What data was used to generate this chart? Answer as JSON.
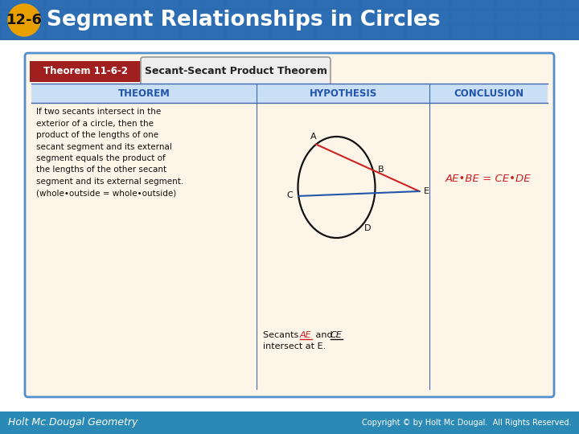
{
  "title": "Segment Relationships in Circles",
  "title_num": "12-6",
  "title_bg": "#2b6cb0",
  "title_badge_bg": "#e8a000",
  "title_badge_text_color": "#111111",
  "title_text_color": "#ffffff",
  "theorem_label_bg": "#a02020",
  "theorem_label_text": "Theorem 11-6-2",
  "theorem_name": "Secant-Secant Product Theorem",
  "card_bg": "#fdf6e8",
  "card_border": "#5590cc",
  "col_header_color": "#2255aa",
  "col_headers": [
    "THEOREM",
    "HYPOTHESIS",
    "CONCLUSION"
  ],
  "theorem_text_lines": [
    "If two secants intersect in the",
    "exterior of a circle, then the",
    "product of the lengths of one",
    "secant segment and its external",
    "segment equals the product of",
    "the lengths of the other secant",
    "segment and its external segment.",
    "(whole•outside = whole•outside)"
  ],
  "footer_bg": "#2a8ab5",
  "footer_left": "Holt Mc.Dougal Geometry",
  "footer_right": "Copyright © by Holt Mc Dougal.  All Rights Reserved.",
  "footer_text_color": "#ffffff",
  "table_header_bg": "#c8dff5",
  "body_bg": "#e8f0f8",
  "white_bg": "#ffffff"
}
